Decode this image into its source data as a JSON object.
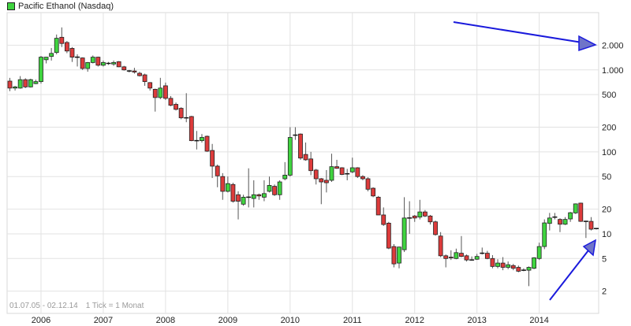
{
  "legend": {
    "label": "Pacific Ethanol (Nasdaq)",
    "swatch_color": "#3fd43f"
  },
  "footer": {
    "range": "01.07.05 - 02.12.14",
    "tick": "1 Tick = 1 Monat"
  },
  "colors": {
    "up": "#3fd43f",
    "down": "#dd3b3b",
    "grid": "#e2e2e2",
    "arrow": "#1a1adc",
    "arrow_fill": "#6f74c9"
  },
  "chart_data": {
    "type": "candlestick",
    "title": "Pacific Ethanol (Nasdaq)",
    "y_scale": "log",
    "ylim": [
      1.07,
      5000
    ],
    "grid": true,
    "legend_position": "top-left",
    "y_ticks": [
      {
        "value": 2000,
        "label": "2.000"
      },
      {
        "value": 1000,
        "label": "1.000"
      },
      {
        "value": 500,
        "label": "500"
      },
      {
        "value": 200,
        "label": "200"
      },
      {
        "value": 100,
        "label": "100"
      },
      {
        "value": 50,
        "label": "50"
      },
      {
        "value": 20,
        "label": "20"
      },
      {
        "value": 10,
        "label": "10"
      },
      {
        "value": 5,
        "label": "5"
      },
      {
        "value": 2,
        "label": "2"
      }
    ],
    "x_ticks": [
      "2006",
      "2007",
      "2008",
      "2009",
      "2010",
      "2011",
      "2012",
      "2013",
      "2014"
    ],
    "columns": [
      "month",
      "open",
      "high",
      "low",
      "close"
    ],
    "candles": [
      [
        "2005-07",
        730,
        800,
        550,
        600
      ],
      [
        "2005-08",
        600,
        640,
        560,
        620
      ],
      [
        "2005-09",
        600,
        840,
        590,
        760
      ],
      [
        "2005-10",
        760,
        790,
        600,
        620
      ],
      [
        "2005-11",
        620,
        780,
        610,
        760
      ],
      [
        "2005-12",
        680,
        760,
        670,
        720
      ],
      [
        "2006-01",
        720,
        1480,
        680,
        1430
      ],
      [
        "2006-02",
        1330,
        1440,
        1200,
        1430
      ],
      [
        "2006-03",
        1460,
        1850,
        1300,
        1590
      ],
      [
        "2006-04",
        1630,
        2700,
        1550,
        2430
      ],
      [
        "2006-05",
        2500,
        3300,
        1900,
        2100
      ],
      [
        "2006-06",
        2160,
        2250,
        1600,
        1700
      ],
      [
        "2006-07",
        1830,
        1900,
        1250,
        1430
      ],
      [
        "2006-08",
        1430,
        1550,
        1100,
        1430
      ],
      [
        "2006-09",
        1400,
        1420,
        1000,
        1040
      ],
      [
        "2006-10",
        1040,
        1250,
        950,
        1230
      ],
      [
        "2006-11",
        1230,
        1500,
        1200,
        1430
      ],
      [
        "2006-12",
        1430,
        1450,
        1100,
        1140
      ],
      [
        "2007-01",
        1140,
        1300,
        1100,
        1230
      ],
      [
        "2007-02",
        1200,
        1250,
        1150,
        1200
      ],
      [
        "2007-03",
        1180,
        1300,
        1120,
        1230
      ],
      [
        "2007-04",
        1260,
        1280,
        1080,
        1090
      ],
      [
        "2007-05",
        1090,
        1120,
        980,
        1000
      ],
      [
        "2007-06",
        970,
        1000,
        930,
        970
      ],
      [
        "2007-07",
        970,
        1060,
        900,
        940
      ],
      [
        "2007-08",
        910,
        950,
        830,
        850
      ],
      [
        "2007-09",
        870,
        900,
        640,
        720
      ],
      [
        "2007-10",
        700,
        710,
        560,
        600
      ],
      [
        "2007-11",
        580,
        590,
        310,
        460
      ],
      [
        "2007-12",
        460,
        800,
        440,
        600
      ],
      [
        "2008-01",
        640,
        700,
        430,
        450
      ],
      [
        "2008-02",
        450,
        480,
        360,
        370
      ],
      [
        "2008-03",
        380,
        400,
        320,
        330
      ],
      [
        "2008-04",
        340,
        350,
        250,
        260
      ],
      [
        "2008-05",
        260,
        520,
        230,
        260
      ],
      [
        "2008-06",
        270,
        275,
        135,
        137
      ],
      [
        "2008-07",
        137,
        180,
        107,
        137
      ],
      [
        "2008-08",
        137,
        165,
        130,
        150
      ],
      [
        "2008-09",
        155,
        158,
        100,
        102
      ],
      [
        "2008-10",
        104,
        125,
        48,
        67
      ],
      [
        "2008-11",
        67,
        70,
        37,
        51
      ],
      [
        "2008-12",
        50,
        55,
        26,
        33
      ],
      [
        "2009-01",
        33,
        50,
        32,
        41
      ],
      [
        "2009-02",
        40,
        42,
        24,
        25
      ],
      [
        "2009-03",
        30,
        33,
        15,
        25
      ],
      [
        "2009-04",
        23,
        30,
        22,
        28
      ],
      [
        "2009-05",
        28,
        63,
        21,
        28
      ],
      [
        "2009-06",
        27,
        45,
        21,
        30
      ],
      [
        "2009-07",
        30,
        31,
        26,
        29
      ],
      [
        "2009-08",
        28,
        45,
        25,
        31
      ],
      [
        "2009-09",
        33,
        50,
        32,
        39
      ],
      [
        "2009-10",
        38,
        40,
        29,
        30
      ],
      [
        "2009-11",
        30,
        45,
        26,
        43
      ],
      [
        "2009-12",
        47,
        75,
        45,
        52
      ],
      [
        "2010-01",
        52,
        200,
        50,
        150
      ],
      [
        "2010-02",
        160,
        200,
        140,
        160
      ],
      [
        "2010-03",
        165,
        168,
        80,
        84
      ],
      [
        "2010-04",
        93,
        130,
        78,
        80
      ],
      [
        "2010-05",
        82,
        100,
        52,
        59
      ],
      [
        "2010-06",
        60,
        62,
        40,
        47
      ],
      [
        "2010-07",
        47,
        48,
        23,
        43
      ],
      [
        "2010-08",
        45,
        60,
        32,
        42
      ],
      [
        "2010-09",
        45,
        95,
        43,
        66
      ],
      [
        "2010-10",
        66,
        80,
        62,
        63
      ],
      [
        "2010-11",
        64,
        65,
        52,
        53
      ],
      [
        "2010-12",
        54,
        62,
        45,
        54
      ],
      [
        "2011-01",
        57,
        85,
        55,
        64
      ],
      [
        "2011-02",
        64,
        65,
        48,
        50
      ],
      [
        "2011-03",
        50,
        52,
        45,
        47
      ],
      [
        "2011-04",
        47,
        49,
        33,
        35
      ],
      [
        "2011-05",
        36,
        37,
        28,
        29
      ],
      [
        "2011-06",
        28,
        29,
        17,
        17
      ],
      [
        "2011-07",
        17,
        21,
        12.5,
        13
      ],
      [
        "2011-08",
        13.5,
        14,
        6.5,
        6.7
      ],
      [
        "2011-09",
        7,
        7.5,
        3.9,
        4.3
      ],
      [
        "2011-10",
        4.4,
        7,
        3.8,
        6.9
      ],
      [
        "2011-11",
        6.4,
        28,
        6.0,
        15.6
      ],
      [
        "2011-12",
        15.6,
        25,
        10,
        15.6
      ],
      [
        "2012-01",
        16.5,
        17,
        14,
        15.6
      ],
      [
        "2012-02",
        16,
        26,
        15,
        18.5
      ],
      [
        "2012-03",
        18.5,
        19.5,
        16,
        16.5
      ],
      [
        "2012-04",
        16.5,
        17,
        13,
        14
      ],
      [
        "2012-05",
        14,
        14.5,
        9.5,
        9.8
      ],
      [
        "2012-06",
        9.4,
        10.5,
        5.2,
        5.4
      ],
      [
        "2012-07",
        5.4,
        5.6,
        3.9,
        5.0
      ],
      [
        "2012-08",
        5.2,
        6.3,
        4.8,
        5.1
      ],
      [
        "2012-09",
        5.0,
        6.6,
        4.9,
        5.9
      ],
      [
        "2012-10",
        5.8,
        9.4,
        5.2,
        5.3
      ],
      [
        "2012-11",
        5.4,
        5.6,
        4.6,
        4.8
      ],
      [
        "2012-12",
        4.8,
        5.3,
        4.7,
        4.8
      ],
      [
        "2013-01",
        4.9,
        5.7,
        4.8,
        5.3
      ],
      [
        "2013-02",
        5.8,
        6.8,
        5.6,
        5.8
      ],
      [
        "2013-03",
        5.8,
        6.2,
        4.9,
        5.0
      ],
      [
        "2013-04",
        5.0,
        5.5,
        3.8,
        4.0
      ],
      [
        "2013-05",
        4.0,
        4.9,
        3.8,
        4.4
      ],
      [
        "2013-06",
        4.4,
        5.2,
        3.6,
        3.9
      ],
      [
        "2013-07",
        3.9,
        4.6,
        3.7,
        4.2
      ],
      [
        "2013-08",
        4.1,
        4.3,
        3.6,
        3.8
      ],
      [
        "2013-09",
        3.9,
        4.1,
        3.4,
        3.5
      ],
      [
        "2013-10",
        3.6,
        3.8,
        3.5,
        3.6
      ],
      [
        "2013-11",
        3.6,
        4.0,
        2.3,
        3.9
      ],
      [
        "2013-12",
        3.8,
        5.2,
        3.7,
        5.1
      ],
      [
        "2014-01",
        5.0,
        7.8,
        4.8,
        7.0
      ],
      [
        "2014-02",
        7.0,
        15,
        6.5,
        13.6
      ],
      [
        "2014-03",
        13.4,
        18,
        11,
        15.6
      ],
      [
        "2014-04",
        16,
        18,
        15,
        16
      ],
      [
        "2014-05",
        15,
        15.5,
        10.5,
        13.1
      ],
      [
        "2014-06",
        13.1,
        16,
        12.8,
        15
      ],
      [
        "2014-07",
        15.2,
        18.5,
        14,
        18.1
      ],
      [
        "2014-08",
        18,
        23.5,
        17.5,
        23.2
      ],
      [
        "2014-09",
        23.7,
        24,
        14,
        14.2
      ],
      [
        "2014-10",
        14.2,
        14.5,
        8.9,
        14.2
      ],
      [
        "2014-11",
        14.2,
        16,
        11,
        11.4
      ],
      [
        "2014-12",
        11.6,
        11.8,
        11.3,
        11.6
      ]
    ]
  }
}
